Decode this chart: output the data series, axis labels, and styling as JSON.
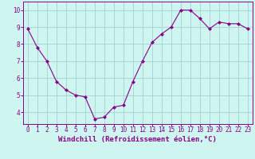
{
  "x": [
    0,
    1,
    2,
    3,
    4,
    5,
    6,
    7,
    8,
    9,
    10,
    11,
    12,
    13,
    14,
    15,
    16,
    17,
    18,
    19,
    20,
    21,
    22,
    23
  ],
  "y": [
    8.9,
    7.8,
    7.0,
    5.8,
    5.3,
    5.0,
    4.9,
    3.6,
    3.7,
    4.3,
    4.4,
    5.8,
    7.0,
    8.1,
    8.6,
    9.0,
    10.0,
    10.0,
    9.5,
    8.9,
    9.3,
    9.2,
    9.2,
    8.9
  ],
  "line_color": "#880088",
  "marker": "D",
  "marker_size": 2.0,
  "bg_color": "#cef5f0",
  "grid_color": "#99cccc",
  "xlabel": "Windchill (Refroidissement éolien,°C)",
  "xlim": [
    -0.5,
    23.5
  ],
  "ylim": [
    3.3,
    10.5
  ],
  "yticks": [
    4,
    5,
    6,
    7,
    8,
    9,
    10
  ],
  "xticks": [
    0,
    1,
    2,
    3,
    4,
    5,
    6,
    7,
    8,
    9,
    10,
    11,
    12,
    13,
    14,
    15,
    16,
    17,
    18,
    19,
    20,
    21,
    22,
    23
  ],
  "tick_color": "#880088",
  "xlabel_color": "#880088",
  "spine_color": "#880088",
  "tick_fontsize": 5.5,
  "xlabel_fontsize": 6.5,
  "xlabel_bold": true
}
